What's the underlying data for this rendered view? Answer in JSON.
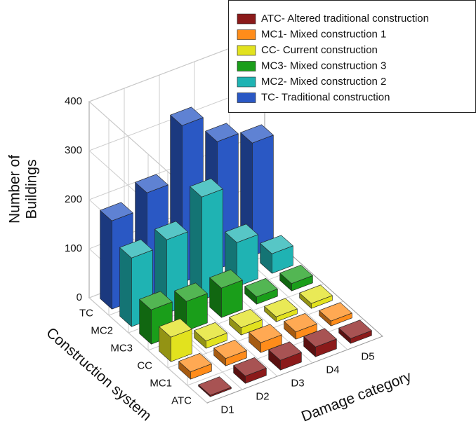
{
  "chart_data": {
    "type": "bar3d",
    "x_label": "Damage category",
    "y_label": "Construction system",
    "z_label": [
      "Number of",
      "Buildings"
    ],
    "categories": [
      "D1",
      "D2",
      "D3",
      "D4",
      "D5"
    ],
    "series": [
      {
        "name": "ATC- Altered traditional construction",
        "label": "ATC",
        "color": "#8b1a1a",
        "values": [
          3,
          15,
          20,
          20,
          10
        ]
      },
      {
        "name": "MC1- Mixed construction 1",
        "label": "MC1",
        "color": "#ff8c1a",
        "values": [
          15,
          15,
          20,
          15,
          10
        ]
      },
      {
        "name": "CC- Current construction",
        "label": "CC",
        "color": "#e2e21e",
        "values": [
          50,
          15,
          15,
          10,
          10
        ]
      },
      {
        "name": "MC3- Mixed construction 3",
        "label": "MC3",
        "color": "#1a9e1a",
        "values": [
          70,
          60,
          60,
          15,
          15
        ]
      },
      {
        "name": "MC2- Mixed construction 2",
        "label": "MC2",
        "color": "#1fb3b3",
        "values": [
          140,
          150,
          210,
          90,
          40
        ]
      },
      {
        "name": "TC- Traditional construction",
        "label": "TC",
        "color": "#2a58c4",
        "values": [
          180,
          210,
          320,
          260,
          230
        ]
      }
    ],
    "zlim": [
      0,
      400
    ],
    "zticks": [
      0,
      100,
      200,
      300,
      400
    ],
    "grid": true,
    "legend": "top-right"
  }
}
